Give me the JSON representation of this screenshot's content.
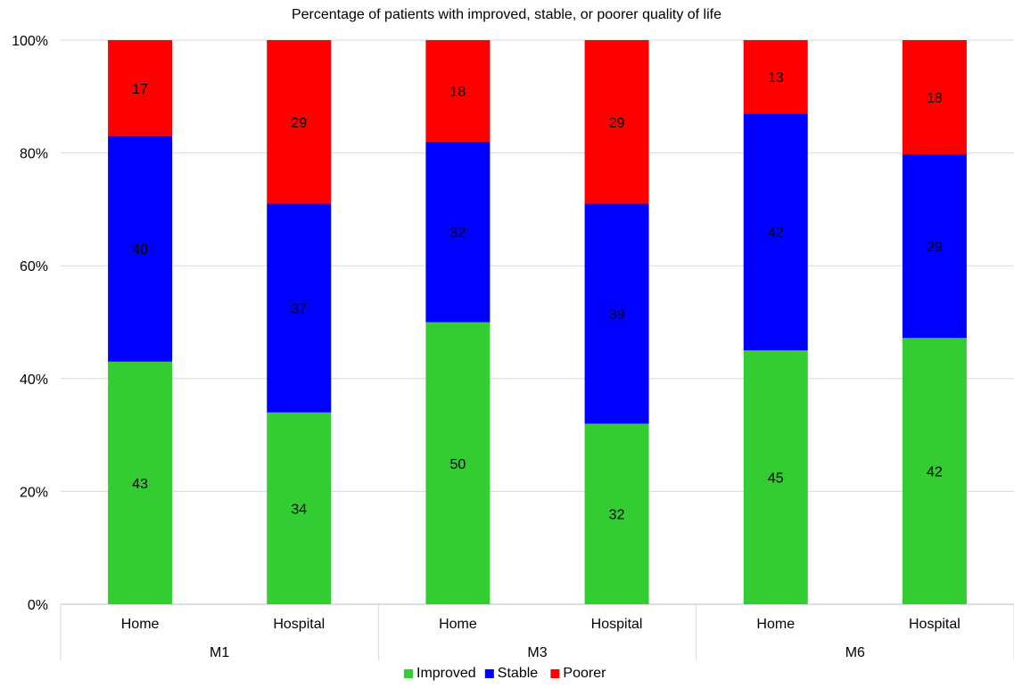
{
  "chart_data": {
    "type": "bar",
    "stacked": true,
    "percent_stacked": true,
    "title": "Percentage of patients with improved, stable, or poorer quality of life",
    "xlabel": "",
    "ylabel": "",
    "ylim": [
      0,
      100
    ],
    "yticks": [
      "0%",
      "20%",
      "40%",
      "60%",
      "80%",
      "100%"
    ],
    "categories": [
      "Home",
      "Hospital",
      "Home",
      "Hospital",
      "Home",
      "Hospital"
    ],
    "groups": [
      {
        "label": "M1",
        "categories": [
          "Home",
          "Hospital"
        ]
      },
      {
        "label": "M3",
        "categories": [
          "Home",
          "Hospital"
        ]
      },
      {
        "label": "M6",
        "categories": [
          "Home",
          "Hospital"
        ]
      }
    ],
    "series": [
      {
        "name": "Improved",
        "color": "#33cc33",
        "values": [
          43,
          34,
          50,
          32,
          45,
          42
        ]
      },
      {
        "name": "Stable",
        "color": "#0000ff",
        "values": [
          40,
          37,
          32,
          39,
          42,
          29
        ]
      },
      {
        "name": "Poorer",
        "color": "#ff0000",
        "values": [
          17,
          29,
          18,
          29,
          13,
          18
        ]
      }
    ],
    "grid": true,
    "legend_position": "bottom"
  }
}
